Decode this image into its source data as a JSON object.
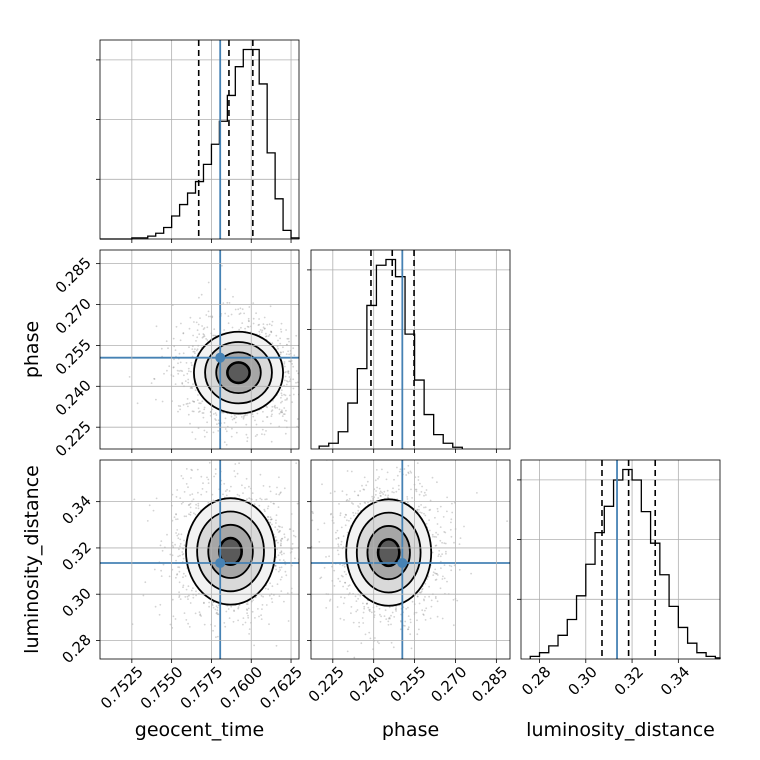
{
  "chart_data": {
    "type": "corner",
    "parameters": [
      "geocent_time",
      "phase",
      "luminosity_distance"
    ],
    "axis_labels": {
      "x": [
        "geocent_time",
        "phase",
        "luminosity_distance"
      ],
      "y": [
        "phase",
        "luminosity_distance"
      ]
    },
    "ranges": [
      [
        0.7505,
        0.763
      ],
      [
        0.217,
        0.29
      ],
      [
        0.272,
        0.358
      ]
    ],
    "ticks": {
      "geocent_time": [
        "0.7525",
        "0.7550",
        "0.7575",
        "0.7600",
        "0.7625"
      ],
      "phase": [
        "0.225",
        "0.240",
        "0.255",
        "0.270",
        "0.285"
      ],
      "luminosity_distance": [
        "0.28",
        "0.30",
        "0.32",
        "0.34"
      ]
    },
    "truths": [
      0.75805,
      0.2505,
      0.3135
    ],
    "quantiles": [
      [
        0.7567,
        0.7586,
        0.7601
      ],
      [
        0.239,
        0.2468,
        0.2548
      ],
      [
        0.307,
        0.3185,
        0.33
      ]
    ],
    "histograms": [
      {
        "param": "geocent_time",
        "bin_edges": [
          0.7505,
          0.7525,
          0.7535,
          0.754,
          0.7545,
          0.755,
          0.7555,
          0.756,
          0.7565,
          0.757,
          0.7575,
          0.758,
          0.7585,
          0.759,
          0.7595,
          0.76,
          0.7605,
          0.761,
          0.7615,
          0.762,
          0.7625,
          0.763
        ],
        "counts": [
          0,
          2,
          5,
          10,
          20,
          40,
          60,
          80,
          100,
          130,
          165,
          205,
          250,
          300,
          330,
          330,
          270,
          150,
          70,
          15,
          2
        ]
      },
      {
        "param": "phase",
        "bin_edges": [
          0.22,
          0.2235,
          0.227,
          0.2305,
          0.234,
          0.2375,
          0.241,
          0.2445,
          0.248,
          0.2515,
          0.255,
          0.2585,
          0.262,
          0.2655,
          0.269,
          0.2725
        ],
        "counts": [
          5,
          10,
          30,
          80,
          140,
          250,
          320,
          330,
          300,
          200,
          120,
          60,
          25,
          10,
          3
        ]
      },
      {
        "param": "luminosity_distance",
        "bin_edges": [
          0.276,
          0.28,
          0.284,
          0.288,
          0.292,
          0.296,
          0.3,
          0.304,
          0.308,
          0.312,
          0.316,
          0.32,
          0.324,
          0.328,
          0.332,
          0.336,
          0.34,
          0.344,
          0.348,
          0.352,
          0.356,
          0.358
        ],
        "counts": [
          5,
          12,
          25,
          45,
          75,
          120,
          180,
          240,
          290,
          340,
          360,
          340,
          280,
          220,
          160,
          100,
          60,
          30,
          12,
          5,
          2
        ]
      }
    ],
    "joint": [
      {
        "x_param": "geocent_time",
        "y_param": "phase",
        "peak": [
          0.7592,
          0.245
        ],
        "sigma": [
          0.0014,
          0.0075
        ],
        "contour_levels_sigma": [
          0.5,
          1.0,
          1.5,
          2.0
        ]
      },
      {
        "x_param": "geocent_time",
        "y_param": "luminosity_distance",
        "peak": [
          0.7587,
          0.3185
        ],
        "sigma": [
          0.0014,
          0.0115
        ],
        "contour_levels_sigma": [
          0.5,
          1.0,
          1.5,
          2.0
        ]
      },
      {
        "x_param": "phase",
        "y_param": "luminosity_distance",
        "peak": [
          0.2455,
          0.318
        ],
        "sigma": [
          0.0078,
          0.0115
        ],
        "contour_levels_sigma": [
          0.5,
          1.0,
          1.5,
          2.0
        ]
      }
    ],
    "grid": true,
    "colors": {
      "truth": "#4682b4",
      "hist": "#000000",
      "quantile": "#000000",
      "grid": "#b0b0b0",
      "points": "#808080"
    }
  }
}
